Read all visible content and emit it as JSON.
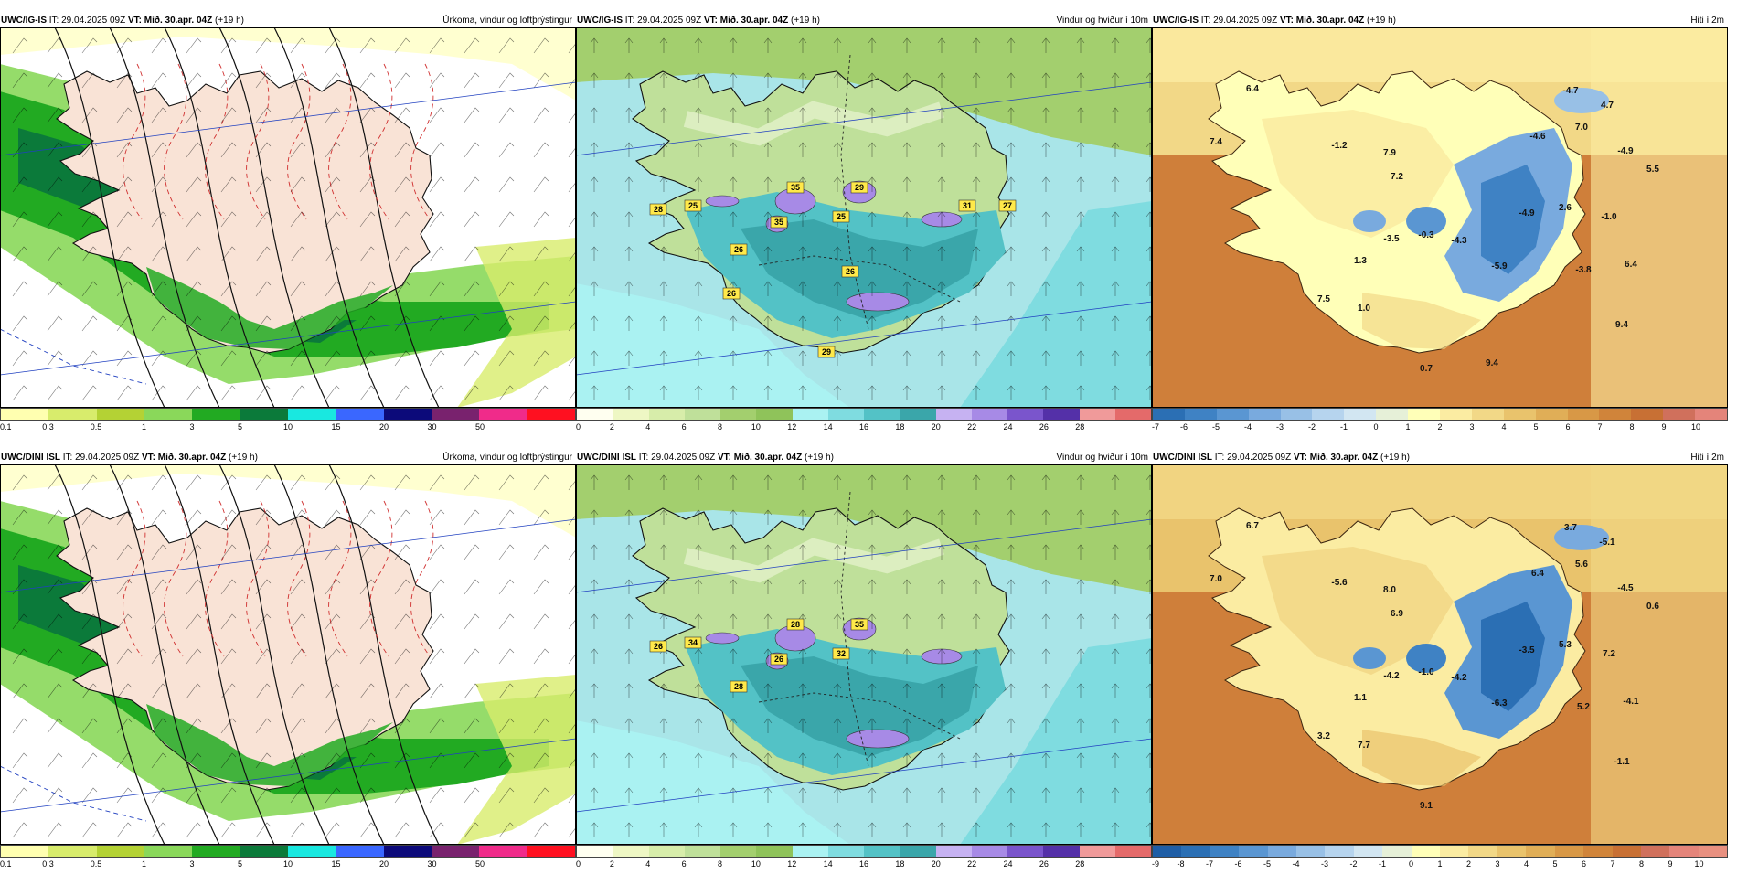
{
  "panels": [
    {
      "id": "ig-precip",
      "model": "UWC/IG-IS",
      "it": "IT: 29.04.2025 09Z",
      "vt_label": "VT:",
      "vt": "Mið. 30.apr. 04Z",
      "lead": "(+19 h)",
      "title": "Úrkoma, vindur og loftþrýstingur",
      "type": "precip",
      "ticks": [
        "0.1",
        "0.3",
        "0.5",
        "1",
        "3",
        "5",
        "10",
        "15",
        "20",
        "30",
        "50"
      ],
      "colors": [
        "#ffffb0",
        "#d8ec6c",
        "#b4d234",
        "#8ad85a",
        "#22aa22",
        "#0b7a3a",
        "#19e8e0",
        "#3a67ff",
        "#0c0a7a",
        "#79226e",
        "#f02b8a",
        "#ff1020"
      ],
      "labels": []
    },
    {
      "id": "ig-wind",
      "model": "UWC/IG-IS",
      "it": "IT: 29.04.2025 09Z",
      "vt_label": "VT:",
      "vt": "Mið. 30.apr. 04Z",
      "lead": "(+19 h)",
      "title": "Vindur og hviður í 10m",
      "type": "wind",
      "ticks": [
        "0",
        "2",
        "4",
        "6",
        "8",
        "10",
        "12",
        "14",
        "16",
        "18",
        "20",
        "22",
        "24",
        "26",
        "28"
      ],
      "colors": [
        "#fffff0",
        "#eef7c4",
        "#d7edaa",
        "#bfe09a",
        "#a3cf6e",
        "#8fc35a",
        "#aaf2f2",
        "#7fdce0",
        "#53c2c6",
        "#3aa6aa",
        "#c6b2f2",
        "#a78ae6",
        "#7a55cc",
        "#5430a8",
        "#f09a9a",
        "#e46a6a"
      ],
      "labels": [
        "28",
        "25",
        "35",
        "29",
        "25",
        "35",
        "26",
        "31",
        "27",
        "26",
        "26",
        "29"
      ]
    },
    {
      "id": "ig-temp",
      "model": "UWC/IG-IS",
      "it": "IT: 29.04.2025 09Z",
      "vt_label": "VT:",
      "vt": "Mið. 30.apr. 04Z",
      "lead": "(+19 h)",
      "title": "Hiti í 2m",
      "type": "temp",
      "ticks": [
        "-7",
        "-6",
        "-5",
        "-4",
        "-3",
        "-2",
        "-1",
        "0",
        "1",
        "2",
        "3",
        "4",
        "5",
        "6",
        "7",
        "8",
        "9",
        "10"
      ],
      "colors": [
        "#2b6fb4",
        "#3f82c4",
        "#5a96d2",
        "#79aade",
        "#98c0e6",
        "#b6d4ee",
        "#d2e6f2",
        "#e6f0d8",
        "#ffffb8",
        "#fbeca2",
        "#f2d887",
        "#e9c36c",
        "#e0ae57",
        "#d89846",
        "#d0843a",
        "#c87034",
        "#d0705c",
        "#e4847a"
      ],
      "labels": [
        "6.4",
        "-4.7",
        "4.7",
        "7.4",
        "7.0",
        "-1.2",
        "7.9",
        "-4.6",
        "-4.9",
        "7.2",
        "5.5",
        "-4.9",
        "2.6",
        "-1.0",
        "-0.3",
        "1.3",
        "-3.5",
        "-4.3",
        "-5.9",
        "-3.8",
        "6.4",
        "1.0",
        "7.5",
        "9.4",
        "0.7",
        "9.4"
      ]
    },
    {
      "id": "dini-precip",
      "model": "UWC/DINI ISL",
      "it": "IT: 29.04.2025 09Z",
      "vt_label": "VT:",
      "vt": "Mið. 30.apr. 04Z",
      "lead": "(+19 h)",
      "title": "Úrkoma, vindur og loftþrýstingur",
      "type": "precip",
      "ticks": [
        "0.1",
        "0.3",
        "0.5",
        "1",
        "3",
        "5",
        "10",
        "15",
        "20",
        "30",
        "50"
      ],
      "colors": [
        "#ffffb0",
        "#d8ec6c",
        "#b4d234",
        "#8ad85a",
        "#22aa22",
        "#0b7a3a",
        "#19e8e0",
        "#3a67ff",
        "#0c0a7a",
        "#79226e",
        "#f02b8a",
        "#ff1020"
      ],
      "labels": []
    },
    {
      "id": "dini-wind",
      "model": "UWC/DINI ISL",
      "it": "IT: 29.04.2025 09Z",
      "vt_label": "VT:",
      "vt": "Mið. 30.apr. 04Z",
      "lead": "(+19 h)",
      "title": "Vindur og hviður í 10m",
      "type": "wind",
      "ticks": [
        "0",
        "2",
        "4",
        "6",
        "8",
        "10",
        "12",
        "14",
        "16",
        "18",
        "20",
        "22",
        "24",
        "26",
        "28"
      ],
      "colors": [
        "#fffff0",
        "#eef7c4",
        "#d7edaa",
        "#bfe09a",
        "#a3cf6e",
        "#8fc35a",
        "#aaf2f2",
        "#7fdce0",
        "#53c2c6",
        "#3aa6aa",
        "#c6b2f2",
        "#a78ae6",
        "#7a55cc",
        "#5430a8",
        "#f09a9a",
        "#e46a6a"
      ],
      "labels": [
        "26",
        "34",
        "28",
        "35",
        "32",
        "26",
        "28"
      ]
    },
    {
      "id": "dini-temp",
      "model": "UWC/DINI ISL",
      "it": "IT: 29.04.2025 09Z",
      "vt_label": "VT:",
      "vt": "Mið. 30.apr. 04Z",
      "lead": "(+19 h)",
      "title": "Hiti í 2m",
      "type": "temp",
      "ticks": [
        "-9",
        "-8",
        "-7",
        "-6",
        "-5",
        "-4",
        "-3",
        "-2",
        "-1",
        "0",
        "1",
        "2",
        "3",
        "4",
        "5",
        "6",
        "7",
        "8",
        "9",
        "10"
      ],
      "colors": [
        "#1f5ea6",
        "#2b6fb4",
        "#3f82c4",
        "#5a96d2",
        "#79aade",
        "#98c0e6",
        "#b6d4ee",
        "#d2e6f2",
        "#e6f0d8",
        "#ffffb8",
        "#fbeca2",
        "#f2d887",
        "#e9c36c",
        "#e0ae57",
        "#d89846",
        "#d0843a",
        "#c87034",
        "#d0705c",
        "#e4847a",
        "#e89080"
      ],
      "labels": [
        "6.7",
        "3.7",
        "-5.1",
        "7.0",
        "5.6",
        "-5.6",
        "8.0",
        "6.4",
        "-4.5",
        "6.9",
        "0.6",
        "-3.5",
        "5.3",
        "7.2",
        "-1.0",
        "1.1",
        "-4.2",
        "-4.2",
        "-6.3",
        "5.2",
        "-4.1",
        "7.7",
        "3.2",
        "-1.1",
        "9.1"
      ]
    }
  ]
}
